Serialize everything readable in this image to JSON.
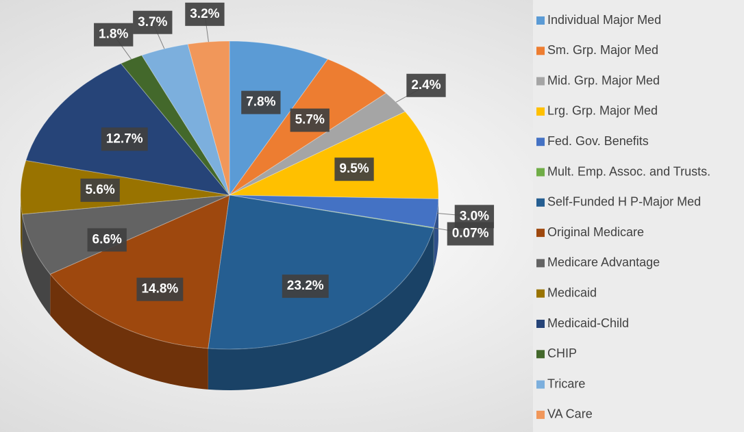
{
  "chart_data": {
    "type": "pie",
    "categories": [
      "Individual Major Med",
      "Sm. Grp. Major Med",
      "Mid. Grp. Major Med",
      "Lrg. Grp. Major Med",
      "Fed. Gov. Benefits",
      "Mult. Emp. Assoc. and Trusts.",
      "Self-Funded H P-Major Med",
      "Original Medicare",
      "Medicare Advantage",
      "Medicaid",
      "Medicaid-Child",
      "CHIP",
      "Tricare",
      "VA Care"
    ],
    "values": [
      7.8,
      5.7,
      2.4,
      9.5,
      3.0,
      0.07,
      23.2,
      14.8,
      6.6,
      5.6,
      12.7,
      1.8,
      3.7,
      3.2
    ],
    "value_labels": [
      "7.8%",
      "5.7%",
      "2.4%",
      "9.5%",
      "3.0%",
      "0.07%",
      "23.2%",
      "14.8%",
      "6.6%",
      "5.6%",
      "12.7%",
      "1.8%",
      "3.7%",
      "3.2%"
    ],
    "colors": [
      "#5b9bd5",
      "#ed7d31",
      "#a5a5a5",
      "#ffc000",
      "#4472c4",
      "#70ad47",
      "#255e91",
      "#9e480e",
      "#636363",
      "#997300",
      "#264478",
      "#43682b",
      "#7cafdd",
      "#f1975a"
    ],
    "legend": "right"
  }
}
